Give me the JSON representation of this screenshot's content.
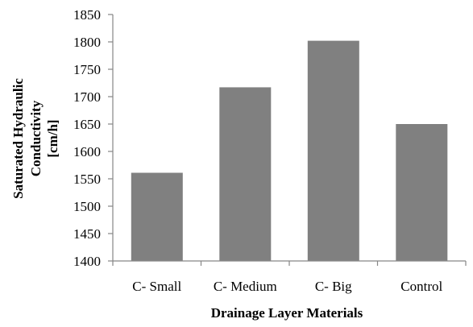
{
  "chart_data": {
    "type": "bar",
    "title": "",
    "xlabel": "Drainage Layer Materials",
    "ylabel_lines": [
      "Saturated Hydraulic",
      "Conductivity",
      "[cm/h]"
    ],
    "categories": [
      "C- Small",
      "C- Medium",
      "C- Big",
      "Control"
    ],
    "values": [
      1561,
      1717,
      1802,
      1650
    ],
    "ylim": [
      1400,
      1850
    ],
    "yticks": [
      "1400",
      "1450",
      "1500",
      "1550",
      "1600",
      "1650",
      "1700",
      "1750",
      "1800",
      "1850"
    ],
    "grid": false,
    "legend": "none",
    "colors": {
      "bar": "#808080",
      "axis": "#868686",
      "text": "#000000"
    }
  }
}
